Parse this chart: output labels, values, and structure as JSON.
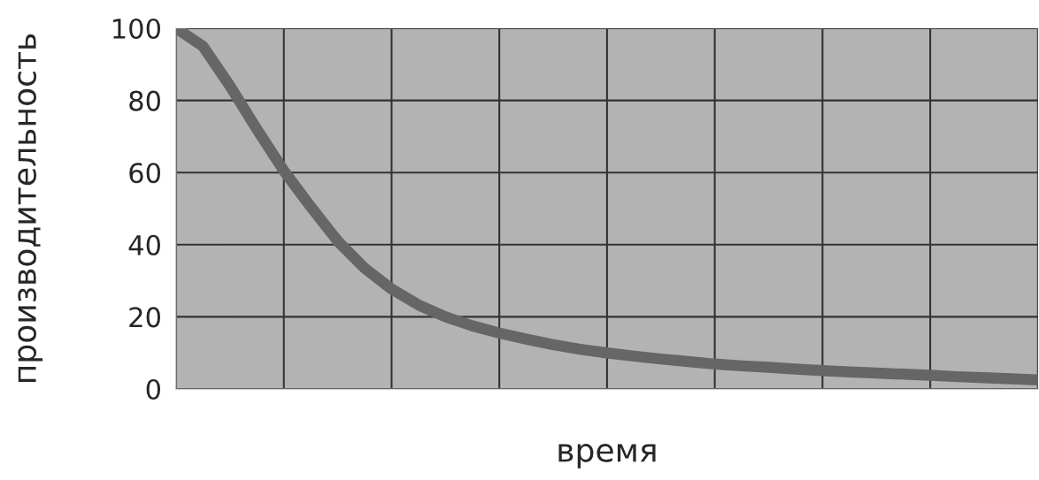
{
  "chart_data": {
    "type": "line",
    "xlabel": "время",
    "ylabel": "производительность",
    "categories": [
      null,
      null,
      null,
      null,
      null,
      null,
      null,
      null,
      null,
      null,
      null,
      null,
      null,
      null,
      null,
      null,
      null,
      null,
      null,
      null,
      null,
      null,
      null,
      null,
      null,
      null,
      null,
      null,
      null,
      null,
      null,
      null,
      null
    ],
    "series": [
      {
        "color": "#666666",
        "values": [
          100,
          95,
          84,
          72,
          60.5,
          50.5,
          41,
          33.5,
          27.7,
          23.3,
          20,
          17.5,
          15.5,
          13.8,
          12.3,
          11,
          10,
          9.1,
          8.3,
          7.6,
          6.9,
          6.4,
          6,
          5.5,
          5.1,
          4.7,
          4.4,
          4.1,
          3.8,
          3.4,
          3.1,
          2.8,
          2.5
        ]
      }
    ],
    "ylim": [
      0,
      100
    ],
    "yticks": [
      0,
      20,
      40,
      60,
      80,
      100
    ],
    "grid": true,
    "marker": "none",
    "line_style": "solid"
  }
}
